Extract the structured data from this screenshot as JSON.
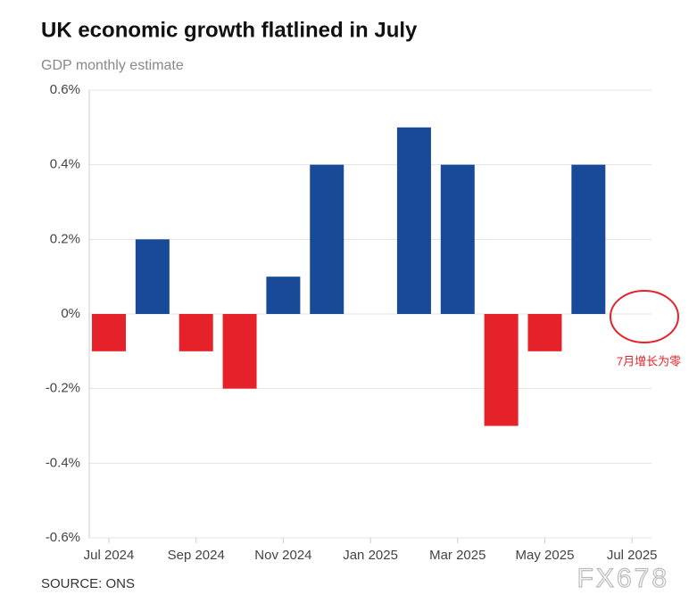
{
  "chart_data": {
    "type": "bar",
    "title": "UK economic growth flatlined in July",
    "subtitle": "GDP monthly estimate",
    "source": "SOURCE: ONS",
    "categories": [
      "Jul 2024",
      null,
      "Sep 2024",
      null,
      "Nov 2024",
      null,
      "Jan 2025",
      null,
      "Mar 2025",
      null,
      "May 2025",
      null,
      "Jul 2025"
    ],
    "values": [
      -0.1,
      0.2,
      -0.1,
      -0.2,
      0.1,
      0.4,
      0,
      0.5,
      0.4,
      -0.3,
      -0.1,
      0.4,
      0
    ],
    "positive_color": "#184a98",
    "negative_color": "#e52229",
    "ylim": [
      -0.6,
      0.6
    ],
    "yticks": [
      {
        "value": -0.6,
        "label": "-0.6%"
      },
      {
        "value": -0.4,
        "label": "-0.4%"
      },
      {
        "value": -0.2,
        "label": "-0.2%"
      },
      {
        "value": 0,
        "label": "0%"
      },
      {
        "value": 0.2,
        "label": "0.2%"
      },
      {
        "value": 0.4,
        "label": "0.4%"
      },
      {
        "value": 0.6,
        "label": "0.6%"
      }
    ],
    "grid": true,
    "annotation": "7月增长为零",
    "watermark": "FX678"
  }
}
